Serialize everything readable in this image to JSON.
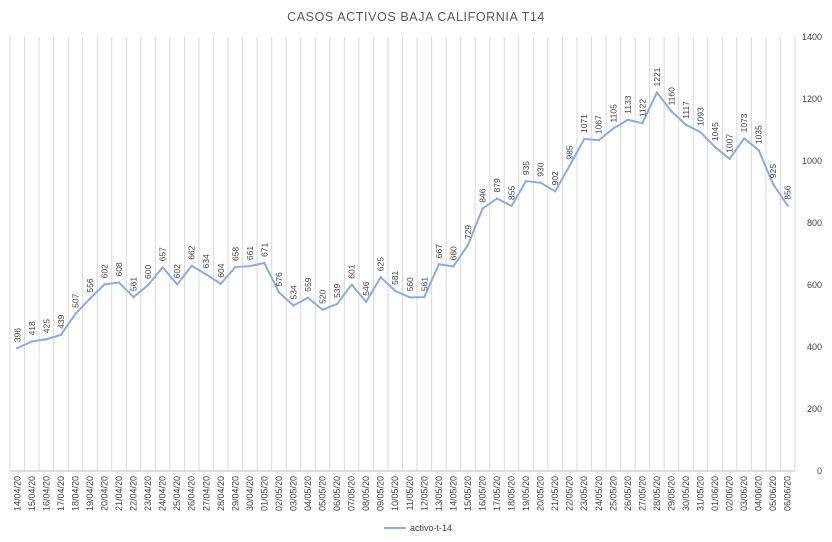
{
  "chart_data": {
    "type": "line",
    "title": "CASOS  ACTIVOS  BAJA  CALIFORNIA  T14",
    "xlabel": "",
    "ylabel": "",
    "ylim": [
      0,
      1400
    ],
    "yticks": [
      0,
      200,
      400,
      600,
      800,
      1000,
      1200,
      1400
    ],
    "y_axis_side": "right",
    "grid": "vertical",
    "legend_position": "bottom",
    "categories": [
      "14/04/20",
      "15/04/20",
      "16/04/20",
      "17/04/20",
      "18/04/20",
      "19/04/20",
      "20/04/20",
      "21/04/20",
      "22/04/20",
      "23/04/20",
      "24/04/20",
      "25/04/20",
      "26/04/20",
      "27/04/20",
      "28/04/20",
      "29/04/20",
      "30/04/20",
      "01/05/20",
      "02/05/20",
      "03/05/20",
      "04/05/20",
      "05/05/20",
      "06/05/20",
      "07/05/20",
      "08/05/20",
      "09/05/20",
      "10/05/20",
      "11/05/20",
      "12/05/20",
      "13/05/20",
      "14/05/20",
      "15/05/20",
      "16/05/20",
      "17/05/20",
      "18/05/20",
      "19/05/20",
      "20/05/20",
      "21/05/20",
      "22/05/20",
      "23/05/20",
      "24/05/20",
      "25/05/20",
      "26/05/20",
      "27/05/20",
      "28/05/20",
      "29/05/20",
      "30/05/20",
      "31/05/20",
      "01/06/20",
      "02/06/20",
      "03/06/20",
      "04/06/20",
      "05/06/20",
      "06/06/20"
    ],
    "series": [
      {
        "name": "activo-t-14",
        "color": "#8faadc",
        "values": [
          396,
          418,
          425,
          439,
          507,
          556,
          602,
          608,
          561,
          600,
          657,
          602,
          662,
          634,
          604,
          658,
          661,
          671,
          576,
          534,
          559,
          520,
          539,
          601,
          546,
          625,
          581,
          560,
          561,
          667,
          660,
          729,
          846,
          879,
          855,
          935,
          930,
          902,
          985,
          1071,
          1067,
          1105,
          1133,
          1122,
          1221,
          1160,
          1117,
          1093,
          1045,
          1007,
          1073,
          1035,
          925,
          856
        ]
      }
    ]
  }
}
